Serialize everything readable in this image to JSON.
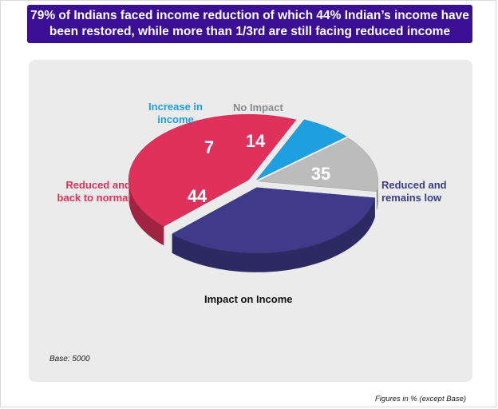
{
  "header": {
    "line1": "79% of Indians faced income reduction of which 44% Indian’s income have",
    "line2": "been restored, while more than 1/3rd are still facing reduced income"
  },
  "chart_data": {
    "type": "pie",
    "title": "Impact on Income",
    "slices": [
      {
        "name": "Reduced and back to normal",
        "value": 44,
        "color": "#e0305c"
      },
      {
        "name": "Increase in income",
        "value": 7,
        "color": "#1ea0e0"
      },
      {
        "name": "No Impact",
        "value": 14,
        "color": "#bcbcbc"
      },
      {
        "name": "Reduced and remains low",
        "value": 35,
        "color": "#3f3a8a"
      }
    ],
    "labels": {
      "increase_line1": "Increase in",
      "increase_line2": "income",
      "no_impact": "No Impact",
      "reduced_normal_line1": "Reduced and",
      "reduced_normal_line2": "back to normal",
      "reduced_low_line1": "Reduced and",
      "reduced_low_line2": "remains low"
    },
    "values_text": {
      "reduced_normal": "44",
      "increase": "7",
      "no_impact": "14",
      "reduced_low": "35"
    }
  },
  "footer": {
    "base": "Base: 5000",
    "figures_note": "Figures in % (except Base)"
  }
}
